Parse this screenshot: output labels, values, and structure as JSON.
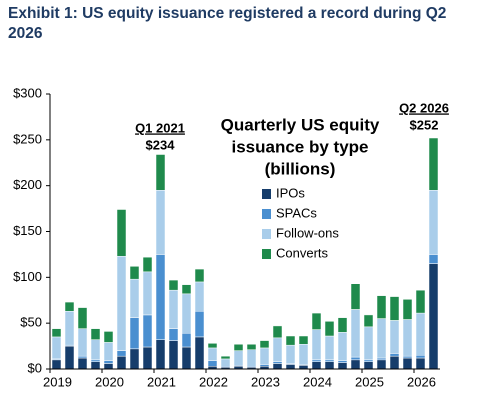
{
  "chart_data": {
    "type": "stacked_bar",
    "title": "Exhibit 1: US equity issuance registered a record during Q2 2026",
    "chart_title": [
      "Quarterly US equity",
      "issuance by type",
      "(billions)"
    ],
    "categories": [
      "2019",
      null,
      null,
      null,
      "2020",
      null,
      null,
      null,
      "2021",
      null,
      null,
      null,
      "2022",
      null,
      null,
      null,
      "2023",
      null,
      null,
      null,
      "2024",
      null,
      null,
      null,
      "2025",
      null,
      null,
      null,
      "2026",
      null
    ],
    "series": [
      {
        "name": "IPOs",
        "color": "#163d6b",
        "values": [
          10,
          25,
          12,
          8,
          6,
          14,
          22,
          24,
          32,
          31,
          24,
          35,
          3,
          2,
          3,
          2,
          3,
          6,
          5,
          4,
          8,
          8,
          7,
          10,
          8,
          10,
          14,
          12,
          12,
          115
        ]
      },
      {
        "name": "SPACs",
        "color": "#4a8fd0",
        "values": [
          1,
          1,
          2,
          2,
          3,
          6,
          34,
          35,
          93,
          13,
          15,
          28,
          6,
          1,
          1,
          1,
          2,
          2,
          1,
          1,
          2,
          2,
          2,
          3,
          2,
          2,
          3,
          2,
          3,
          10
        ]
      },
      {
        "name": "Follow-ons",
        "color": "#a9cdea",
        "values": [
          24,
          37,
          30,
          22,
          20,
          103,
          42,
          47,
          70,
          42,
          43,
          32,
          14,
          8,
          16,
          18,
          18,
          26,
          20,
          22,
          33,
          26,
          31,
          52,
          36,
          43,
          36,
          40,
          46,
          70
        ]
      },
      {
        "name": "Converts",
        "color": "#1f8a4c",
        "values": [
          9,
          10,
          23,
          12,
          12,
          51,
          14,
          16,
          39,
          11,
          10,
          14,
          5,
          3,
          7,
          6,
          8,
          13,
          10,
          9,
          18,
          16,
          16,
          28,
          13,
          25,
          26,
          22,
          25,
          57
        ]
      }
    ],
    "annotations": [
      {
        "label": "Q1 2021",
        "total_label": "$234"
      },
      {
        "label": "Q2 2026",
        "total_label": "$252"
      }
    ],
    "ylim": [
      0,
      300
    ],
    "yticks": [
      {
        "value": 0,
        "label": "$0"
      },
      {
        "value": 50,
        "label": "$50"
      },
      {
        "value": 100,
        "label": "$100"
      },
      {
        "value": 150,
        "label": "$150"
      },
      {
        "value": 200,
        "label": "$200"
      },
      {
        "value": 250,
        "label": "$250"
      },
      {
        "value": 300,
        "label": "$300"
      }
    ],
    "grid": false
  }
}
